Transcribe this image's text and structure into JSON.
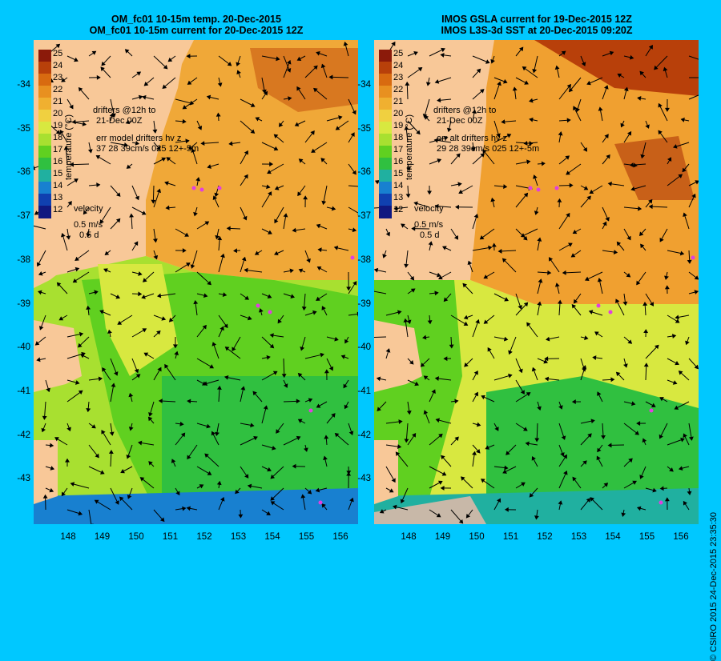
{
  "panels": [
    {
      "id": "left",
      "title_line1": "OM_fc01 10-15m temp. 20-Dec-2015",
      "title_line2": "OM_fc01 10-15m current for 20-Dec-2015 12Z",
      "drifters_label": "drifters @12h to",
      "drifters_time": "21-Dec 00Z",
      "err_label": "err model drifters hv z",
      "err_values": "37 28 39cm/s 025 12+-5m",
      "velocity_label": "velocity",
      "velocity_speed": "0.5 m/s",
      "velocity_days": "0.5 d"
    },
    {
      "id": "right",
      "title_line1": "IMOS GSLA current for 19-Dec-2015 12Z",
      "title_line2": "IMOS L3S-3d SST at 20-Dec-2015 09:20Z",
      "drifters_label": "drifters @12h to",
      "drifters_time": "21-Dec 00Z",
      "err_label": "err alt drifters hv z",
      "err_values": "29 28 39cm/s 025 12+-5m",
      "velocity_label": "velocity",
      "velocity_speed": "0.5 m/s",
      "velocity_days": "0.5 d"
    }
  ],
  "colorbar": {
    "title": "temperature (°C)",
    "ticks": [
      "25",
      "24",
      "23",
      "22",
      "21",
      "20",
      "19",
      "18",
      "17",
      "16",
      "15",
      "14",
      "13",
      "12"
    ],
    "colors": [
      "#8b1a0a",
      "#b8400a",
      "#d86a10",
      "#e89020",
      "#f0b030",
      "#f0d040",
      "#d8e840",
      "#a8e030",
      "#60d020",
      "#30c040",
      "#20b0a0",
      "#1880d0",
      "#1040b0",
      "#101880"
    ]
  },
  "axes": {
    "lat_ticks": [
      "-34",
      "-35",
      "-36",
      "-37",
      "-38",
      "-39",
      "-40",
      "-41",
      "-42",
      "-43"
    ],
    "lon_ticks": [
      "148",
      "149",
      "150",
      "151",
      "152",
      "153",
      "154",
      "155",
      "156"
    ]
  },
  "copyright": "© CSIRO 2015   24-Dec-2015 23:35:30",
  "colors": {
    "background": "#00c8ff",
    "land": "#f8c898",
    "drifter": "#e040e0"
  }
}
